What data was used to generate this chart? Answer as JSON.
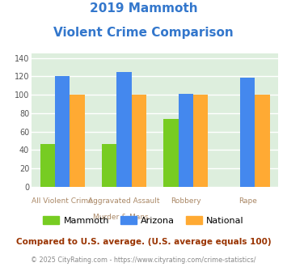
{
  "title_line1": "2019 Mammoth",
  "title_line2": "Violent Crime Comparison",
  "title_color": "#3377cc",
  "cat_labels_top": [
    "",
    "Aggravated Assault",
    "",
    ""
  ],
  "cat_labels_bot": [
    "All Violent Crime",
    "Murder & Mans...",
    "Robbery",
    "Rape"
  ],
  "mammoth": [
    47,
    47,
    74,
    0
  ],
  "arizona": [
    120,
    125,
    101,
    119
  ],
  "national": [
    100,
    100,
    100,
    100
  ],
  "mammoth_color": "#77cc22",
  "arizona_color": "#4488ee",
  "national_color": "#ffaa33",
  "ylim": [
    0,
    145
  ],
  "yticks": [
    0,
    20,
    40,
    60,
    80,
    100,
    120,
    140
  ],
  "plot_bg": "#ddeedd",
  "legend_labels": [
    "Mammoth",
    "Arizona",
    "National"
  ],
  "footer_text": "Compared to U.S. average. (U.S. average equals 100)",
  "footer_color": "#993300",
  "copyright_text": "© 2025 CityRating.com - https://www.cityrating.com/crime-statistics/",
  "copyright_color": "#888888",
  "grid_color": "#ffffff",
  "xlabel_color": "#aa8866"
}
